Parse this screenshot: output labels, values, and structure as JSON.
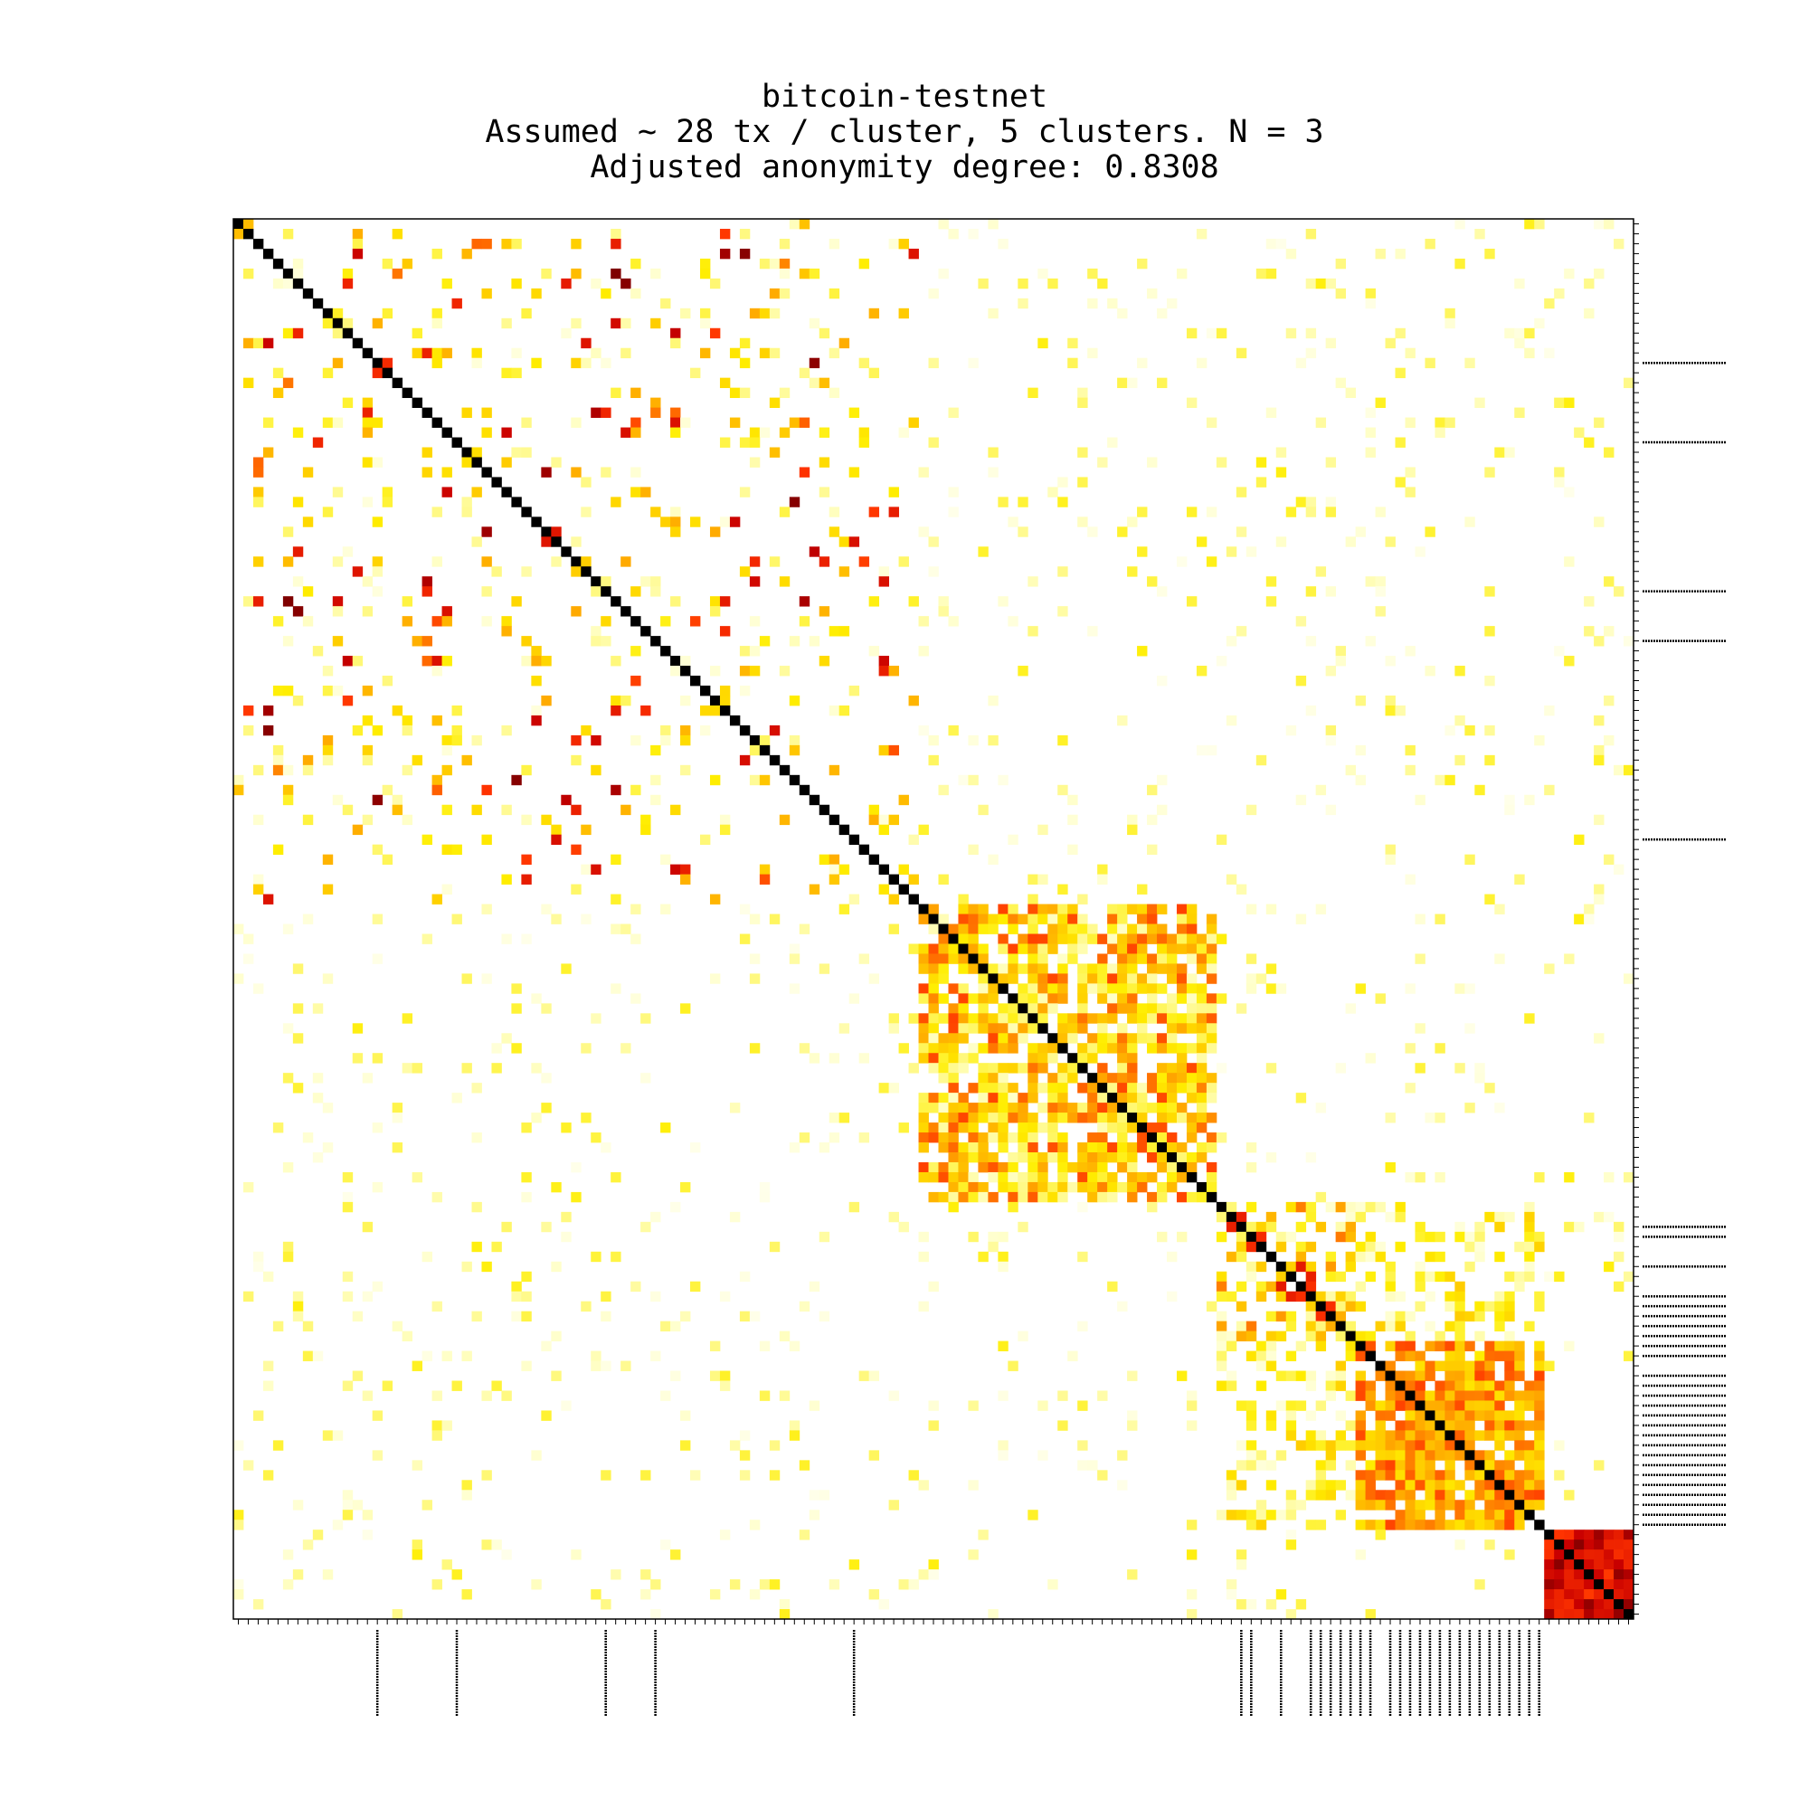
{
  "chart_data": {
    "type": "heatmap",
    "title": "bitcoin-testnet",
    "subtitle": "Assumed ~ 28 tx / cluster, 5 clusters. N = 3",
    "subtitle2": "Adjusted anonymity degree: 0.8308",
    "xlabel": "",
    "ylabel": "",
    "n": 141,
    "colormap": "hot_r",
    "diagonal": "black",
    "clusters": [
      {
        "start": 0,
        "end": 68,
        "pattern": "sparse",
        "density": 0.22
      },
      {
        "start": 69,
        "end": 98,
        "pattern": "block-medium",
        "density": 0.78
      },
      {
        "start": 99,
        "end": 112,
        "pattern": "block-banded",
        "density": 0.55
      },
      {
        "start": 113,
        "end": 131,
        "pattern": "block-strong",
        "density": 0.85
      },
      {
        "start": 132,
        "end": 140,
        "pattern": "block-dense",
        "density": 1.0
      }
    ],
    "marked_indices": [
      14,
      22,
      37,
      42,
      62,
      101,
      102,
      105,
      108,
      109,
      110,
      111,
      112,
      113,
      114,
      116,
      117,
      118,
      119,
      120,
      121,
      122,
      123,
      124,
      125,
      126,
      127,
      128,
      129,
      130,
      131
    ],
    "grid": false,
    "legend": "none"
  }
}
